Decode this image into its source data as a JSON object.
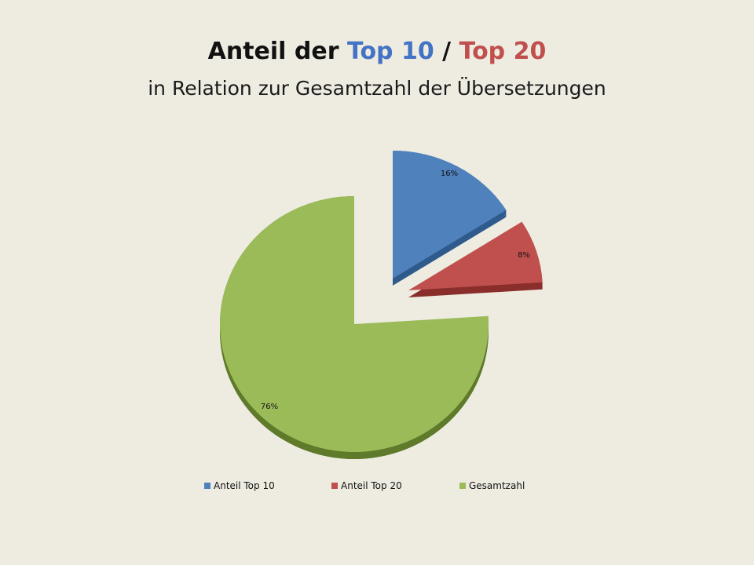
{
  "title": {
    "prefix": "Anteil der ",
    "part1": "Top 10",
    "separator": " / ",
    "part2": "Top 20",
    "part1_color": "#4472c4",
    "part2_color": "#c0504d"
  },
  "subtitle": "in Relation zur Gesamtzahl der Übersetzungen",
  "chart_data": {
    "type": "pie",
    "style": "3d-exploded",
    "slices": [
      {
        "name": "Anteil Top 10",
        "value": 16,
        "label": "16%",
        "color": "#4f81bd",
        "dark": "#2f5a8c",
        "exploded": true
      },
      {
        "name": "Anteil Top 20",
        "value": 8,
        "label": "8%",
        "color": "#c0504d",
        "dark": "#8a2e2c",
        "exploded": true
      },
      {
        "name": "Gesamtzahl",
        "value": 76,
        "label": "76%",
        "color": "#9bbb59",
        "dark": "#5e7a2a",
        "exploded": false
      }
    ],
    "legend_position": "bottom"
  }
}
